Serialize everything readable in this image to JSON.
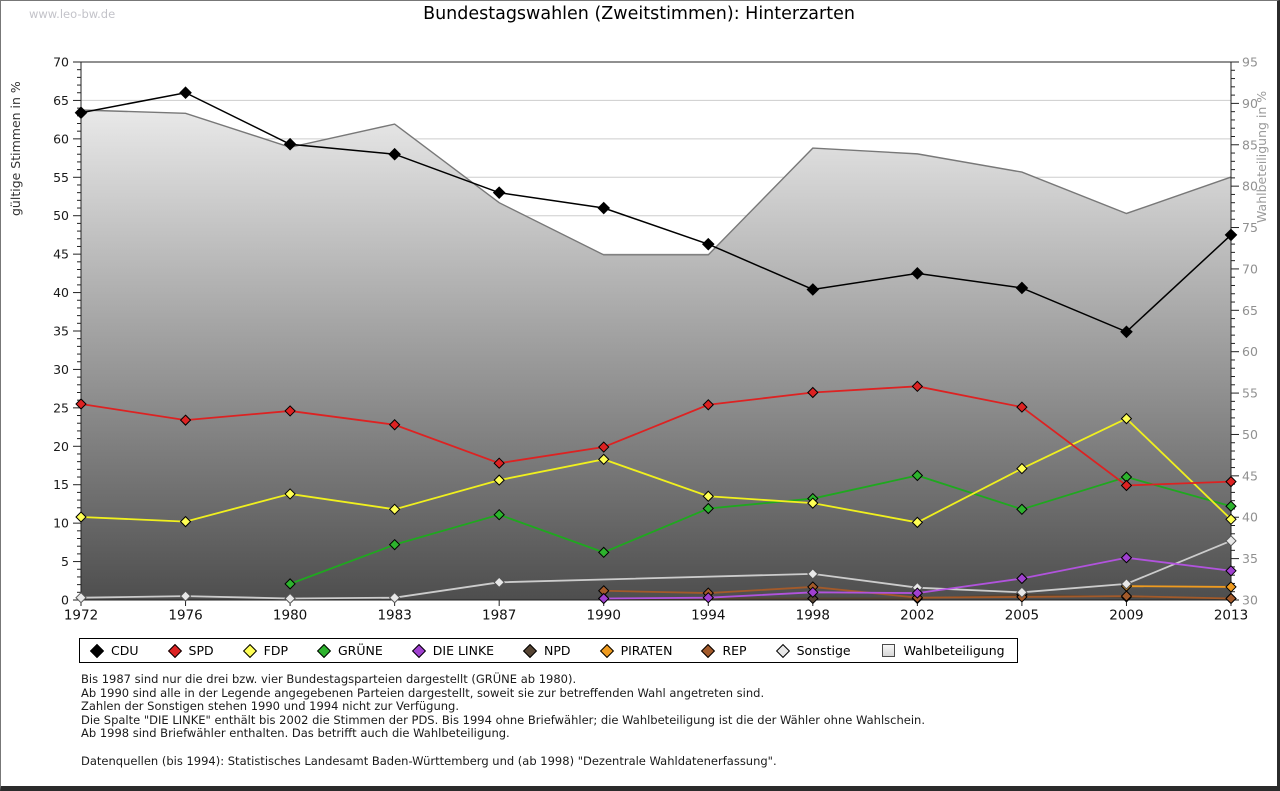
{
  "page": {
    "watermark": "www.leo-bw.de",
    "title": "Bundestagswahlen (Zweitstimmen): Hinterzarten"
  },
  "chart_data": {
    "type": "line",
    "title": "Bundestagswahlen (Zweitstimmen): Hinterzarten",
    "x_categories": [
      "1972",
      "1976",
      "1980",
      "1983",
      "1987",
      "1990",
      "1994",
      "1998",
      "2002",
      "2005",
      "2009",
      "2013"
    ],
    "left_axis": {
      "label": "gültige Stimmen in %",
      "min": 0,
      "max": 70,
      "tick_step": 5,
      "minor_step": 1
    },
    "right_axis": {
      "label": "Wahlbeteiligung in %",
      "min": 30,
      "max": 95,
      "tick_step": 5,
      "minor_step": 1
    },
    "grid": true,
    "legend_position": "bottom",
    "series": [
      {
        "name": "CDU",
        "color": "#000000",
        "marker_fill": "#000000",
        "axis": "left",
        "values": [
          63.4,
          66.0,
          59.3,
          58.0,
          53.0,
          51.0,
          46.3,
          40.4,
          42.5,
          40.6,
          34.9,
          47.5
        ]
      },
      {
        "name": "SPD",
        "color": "#dd2222",
        "marker_fill": "#dd2222",
        "axis": "left",
        "values": [
          25.5,
          23.4,
          24.6,
          22.8,
          17.8,
          19.9,
          25.4,
          27.0,
          27.8,
          25.1,
          14.9,
          15.4
        ]
      },
      {
        "name": "FDP",
        "color": "#f0f01e",
        "marker_fill": "#ffff55",
        "axis": "left",
        "values": [
          10.8,
          10.2,
          13.8,
          11.8,
          15.6,
          18.3,
          13.5,
          12.6,
          10.1,
          17.1,
          23.6,
          10.5
        ]
      },
      {
        "name": "GRÜNE",
        "color": "#1fa81f",
        "marker_fill": "#2db32d",
        "axis": "left",
        "values": [
          null,
          null,
          2.1,
          7.2,
          11.1,
          6.2,
          11.9,
          13.2,
          16.2,
          11.8,
          16.0,
          12.2
        ]
      },
      {
        "name": "DIE LINKE",
        "color": "#b153dd",
        "marker_fill": "#a040d0",
        "axis": "left",
        "values": [
          null,
          null,
          null,
          null,
          null,
          0.2,
          0.3,
          1.0,
          0.9,
          2.8,
          5.5,
          3.8
        ]
      },
      {
        "name": "NPD",
        "color": "#564433",
        "marker_fill": "#564433",
        "axis": "left",
        "values": [
          null,
          null,
          null,
          null,
          null,
          0.2,
          null,
          0.2,
          0.2,
          0.7,
          0.4,
          0.2
        ]
      },
      {
        "name": "PIRATEN",
        "color": "#ef9b1f",
        "marker_fill": "#ef9b1f",
        "axis": "left",
        "values": [
          null,
          null,
          null,
          null,
          null,
          null,
          null,
          null,
          null,
          null,
          1.8,
          1.7
        ]
      },
      {
        "name": "REP",
        "color": "#a35a2a",
        "marker_fill": "#a35a2a",
        "axis": "left",
        "values": [
          null,
          null,
          null,
          null,
          null,
          1.2,
          0.9,
          1.7,
          0.3,
          0.4,
          0.5,
          0.2
        ]
      },
      {
        "name": "Sonstige",
        "color": "#cccccc",
        "marker_fill": "#e8e8e8",
        "axis": "left",
        "values": [
          0.3,
          0.5,
          0.2,
          0.3,
          2.3,
          null,
          null,
          3.4,
          1.6,
          1.0,
          2.1,
          7.7
        ]
      }
    ],
    "turnout_area": {
      "name": "Wahlbeteiligung",
      "axis": "right",
      "style": "area",
      "line_color": "#787878",
      "fill_top": "#f8f8f8",
      "fill_bottom": "#4e4e4e",
      "values": [
        89.2,
        88.8,
        84.7,
        87.5,
        78.0,
        71.7,
        71.7,
        84.6,
        83.9,
        81.7,
        76.7,
        81.1
      ]
    }
  },
  "footnotes": [
    "Bis 1987 sind nur die drei bzw. vier Bundestagsparteien dargestellt (GRÜNE ab 1980).",
    "Ab 1990 sind alle in der Legende angegebenen Parteien dargestellt, soweit sie zur betreffenden Wahl angetreten sind.",
    "Zahlen der Sonstigen stehen 1990 und 1994 nicht zur Verfügung.",
    "Die Spalte \"DIE LINKE\" enthält bis 2002 die Stimmen der PDS. Bis 1994 ohne Briefwähler; die Wahlbeteiligung ist die der Wähler ohne Wahlschein.",
    "Ab 1998 sind Briefwähler enthalten. Das betrifft auch die Wahlbeteiligung."
  ],
  "datasource": "Datenquellen (bis 1994): Statistisches Landesamt Baden-Württemberg und (ab 1998) \"Dezentrale Wahldatenerfassung\"."
}
